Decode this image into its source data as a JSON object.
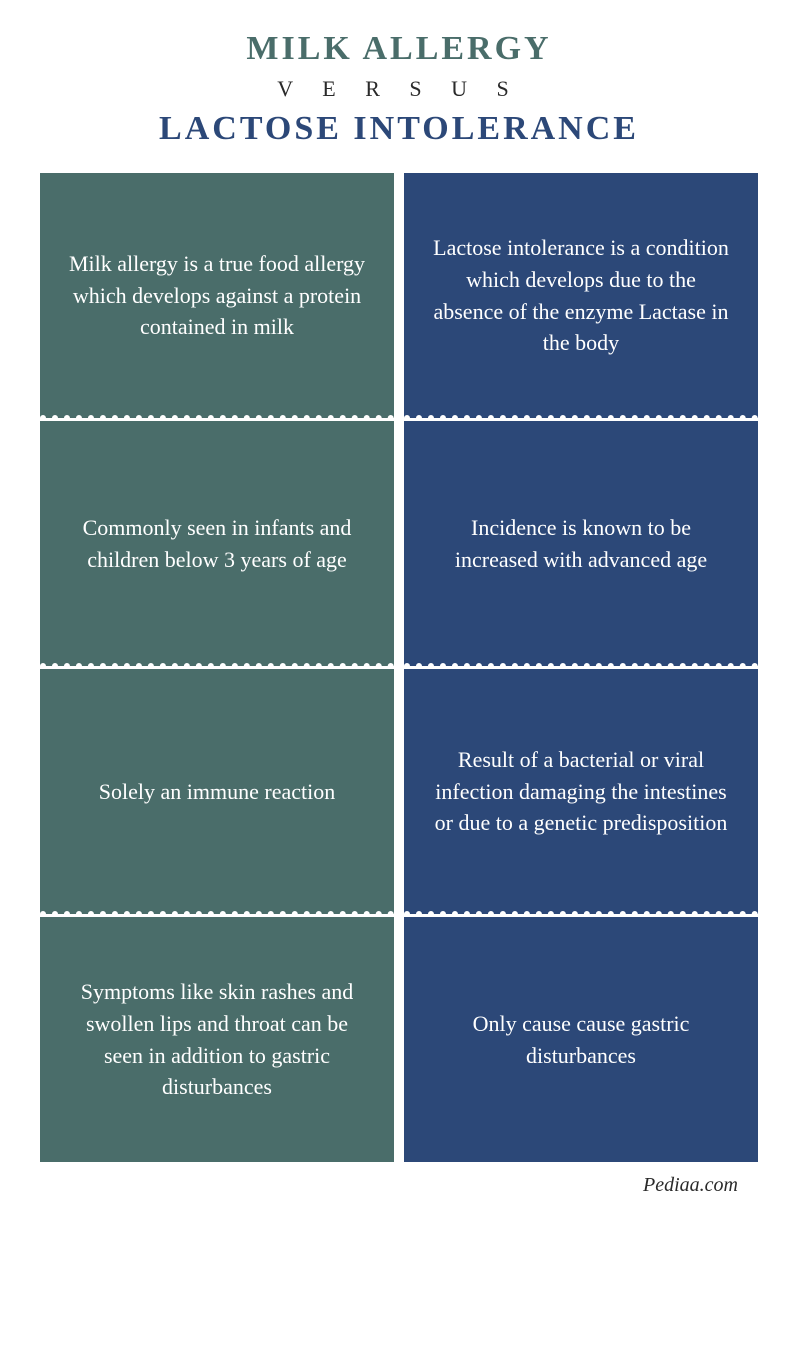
{
  "header": {
    "title_left": "MILK ALLERGY",
    "versus": "V E R S U S",
    "title_right": "LACTOSE INTOLERANCE"
  },
  "colors": {
    "left_title": "#4a6d6a",
    "right_title": "#2c4878",
    "left_bg": "#4a6d6a",
    "right_bg": "#2c4878",
    "text": "#ffffff",
    "divider": "#ffffff"
  },
  "left": {
    "rows": [
      "Milk allergy is a true food allergy which develops against a protein contained in milk",
      "Commonly seen in infants and children below 3 years of age",
      "Solely an immune reaction",
      "Symptoms like skin rashes and swollen lips and throat can be seen in addition to gastric disturbances"
    ]
  },
  "right": {
    "rows": [
      "Lactose intolerance is a condition which develops due to the absence of the enzyme Lactase in the body",
      "Incidence is known to be increased with advanced age",
      "Result of a bacterial or viral infection damaging the intestines or due to a genetic predisposition",
      "Only cause cause gastric disturbances"
    ]
  },
  "source": "Pediaa.com",
  "layout": {
    "cell_min_height": 245,
    "font_size_body": 22,
    "font_size_title": 34
  }
}
